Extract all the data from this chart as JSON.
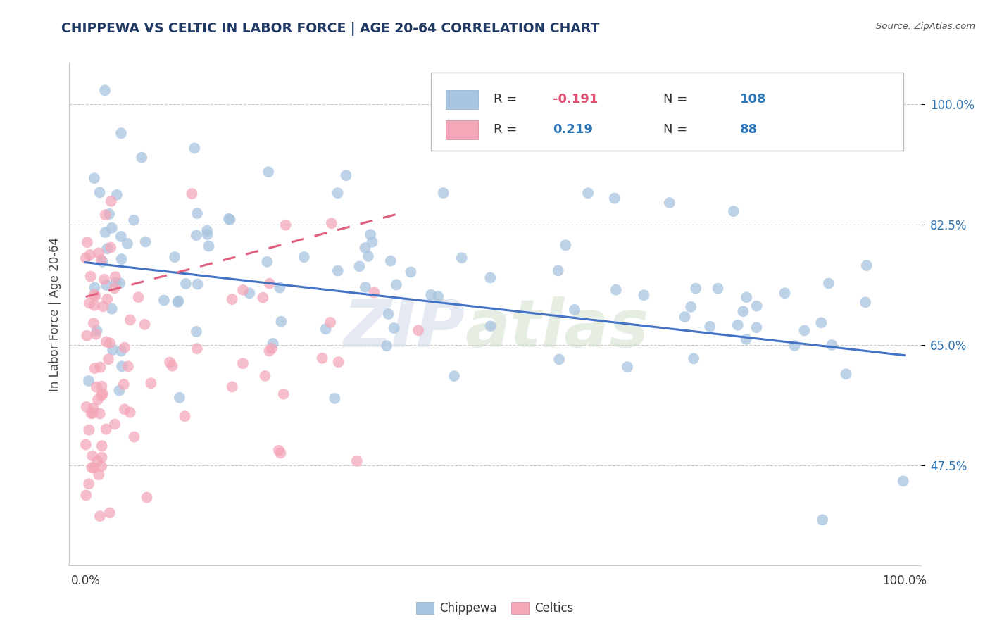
{
  "title": "CHIPPEWA VS CELTIC IN LABOR FORCE | AGE 20-64 CORRELATION CHART",
  "source": "Source: ZipAtlas.com",
  "ylabel": "In Labor Force | Age 20-64",
  "ytick_values": [
    0.475,
    0.65,
    0.825,
    1.0
  ],
  "ytick_labels": [
    "47.5%",
    "65.0%",
    "82.5%",
    "100.0%"
  ],
  "xlim": [
    -0.02,
    1.02
  ],
  "ylim": [
    0.33,
    1.06
  ],
  "chippewa_color": "#a8c4e0",
  "celtics_color": "#f4a7b9",
  "chippewa_line_color": "#4472c4",
  "celtics_line_color": "#e06080",
  "legend_r_chippewa": "-0.191",
  "legend_n_chippewa": "108",
  "legend_r_celtics": "0.219",
  "legend_n_celtics": "88",
  "r_value_color": "#e05070",
  "n_value_color": "#2e75b6",
  "celtics_r_value_color": "#2e75b6",
  "title_color": "#1f3864",
  "tick_label_color": "#2e75b6",
  "grid_color": "#cccccc",
  "watermark_zip_color": "#d0d8e8",
  "watermark_atlas_color": "#c8d8c0"
}
